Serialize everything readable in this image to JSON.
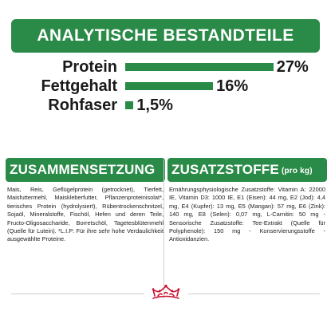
{
  "header": {
    "title": "ANALYTISCHE BESTANDTEILE"
  },
  "nutrients": [
    {
      "label": "Protein",
      "value": "27%",
      "percent": 27
    },
    {
      "label": "Fettgehalt",
      "value": "16%",
      "percent": 16
    },
    {
      "label": "Rohfaser",
      "value": "1,5%",
      "percent": 1.5
    }
  ],
  "composition": {
    "title": "ZUSAMMENSETZUNG",
    "text": "Mais, Reis, Geflügelprotein (getrocknet), Tierfett, Maisfuttermehl, Maiskleberfutter, Pflanzenproteinisolat*, tierisches Protein (hydrolysiert), Rübentrockenschnitzel, Sojaöl, Mineralstoffe, Fischöl, Hefen und deren Teile, Fructo-Oligosaccharide, Borretschöl, Tagetesblütenmehl (Quelle für Lutein). *L.I.P: Für ihre sehr hohe Verdaulichkeit ausgewählte Proteine."
  },
  "additives": {
    "title": "ZUSATZSTOFFE",
    "title_suffix": "(pro kg)",
    "text": "Ernährungsphysiologische Zusatzstoffe: Vitamin A: 22000 IE, Vitamin D3: 1000 IE, E1 (Eisen): 44 mg, E2 (Jod): 4,4 mg, E4 (Kupfer): 13 mg, E5 (Mangan): 57 mg, E6 (Zink): 140 mg, E8 (Selen): 0,07 mg, L-Carnitin: 50 mg - Sensorische Zusatzstoffe: Tee-Extrakt (Quelle für Polyphenole): 150 mg - Konservierungsstoffe - Antioxidanzien."
  },
  "colors": {
    "brand_green": "#2a8a47",
    "brand_red": "#c8102e"
  },
  "icons": {
    "brand_logo": "crown-icon"
  }
}
